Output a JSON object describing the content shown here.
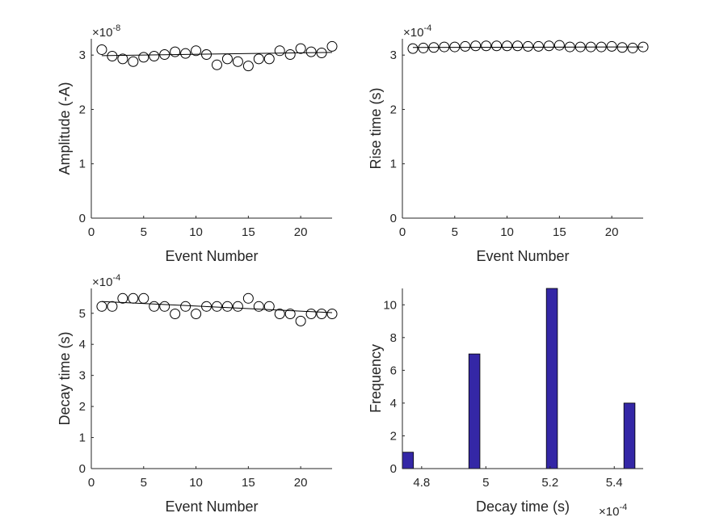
{
  "chart_data": [
    {
      "id": "amplitude",
      "type": "scatter",
      "xlabel": "Event Number",
      "ylabel": "Amplitude (-A)",
      "exponent_label": "×10",
      "exponent": "-8",
      "xlim": [
        0,
        23
      ],
      "ylim": [
        0,
        3.3
      ],
      "xticks": [
        0,
        5,
        10,
        15,
        20
      ],
      "xtick_labels": [
        "0",
        "5",
        "10",
        "15",
        "20"
      ],
      "yticks": [
        0,
        1,
        2,
        3
      ],
      "ytick_labels": [
        "0",
        "1",
        "2",
        "3"
      ],
      "x": [
        1,
        2,
        3,
        4,
        5,
        6,
        7,
        8,
        9,
        10,
        11,
        12,
        13,
        14,
        15,
        16,
        17,
        18,
        19,
        20,
        21,
        22,
        23
      ],
      "y": [
        3.1,
        2.98,
        2.93,
        2.88,
        2.96,
        2.98,
        3.01,
        3.06,
        3.03,
        3.08,
        3.01,
        2.82,
        2.93,
        2.88,
        2.8,
        2.93,
        2.93,
        3.08,
        3.01,
        3.12,
        3.06,
        3.04,
        3.16
      ],
      "fit": [
        [
          1,
          2.99
        ],
        [
          23,
          3.05
        ]
      ]
    },
    {
      "id": "rise",
      "type": "scatter",
      "xlabel": "Event Number",
      "ylabel": "Rise time (s)",
      "exponent_label": "×10",
      "exponent": "-4",
      "xlim": [
        0,
        23
      ],
      "ylim": [
        0,
        3.3
      ],
      "xticks": [
        0,
        5,
        10,
        15,
        20
      ],
      "xtick_labels": [
        "0",
        "5",
        "10",
        "15",
        "20"
      ],
      "yticks": [
        0,
        1,
        2,
        3
      ],
      "ytick_labels": [
        "0",
        "1",
        "2",
        "3"
      ],
      "x": [
        1,
        2,
        3,
        4,
        5,
        6,
        7,
        8,
        9,
        10,
        11,
        12,
        13,
        14,
        15,
        16,
        17,
        18,
        19,
        20,
        21,
        22,
        23
      ],
      "y": [
        3.12,
        3.13,
        3.14,
        3.15,
        3.15,
        3.16,
        3.17,
        3.17,
        3.17,
        3.17,
        3.17,
        3.16,
        3.16,
        3.17,
        3.18,
        3.15,
        3.15,
        3.15,
        3.15,
        3.16,
        3.14,
        3.13,
        3.15
      ],
      "fit": [
        [
          1,
          3.14
        ],
        [
          23,
          3.15
        ]
      ]
    },
    {
      "id": "decay",
      "type": "scatter",
      "xlabel": "Event Number",
      "ylabel": "Decay time (s)",
      "exponent_label": "×10",
      "exponent": "-4",
      "xlim": [
        0,
        23
      ],
      "ylim": [
        0,
        5.8
      ],
      "xticks": [
        0,
        5,
        10,
        15,
        20
      ],
      "xtick_labels": [
        "0",
        "5",
        "10",
        "15",
        "20"
      ],
      "yticks": [
        0,
        1,
        2,
        3,
        4,
        5
      ],
      "ytick_labels": [
        "0",
        "1",
        "2",
        "3",
        "4",
        "5"
      ],
      "x": [
        1,
        2,
        3,
        4,
        5,
        6,
        7,
        8,
        9,
        10,
        11,
        12,
        13,
        14,
        15,
        16,
        17,
        18,
        19,
        20,
        21,
        22,
        23
      ],
      "y": [
        5.22,
        5.22,
        5.48,
        5.48,
        5.48,
        5.22,
        5.22,
        4.98,
        5.22,
        4.98,
        5.22,
        5.22,
        5.22,
        5.22,
        5.48,
        5.22,
        5.22,
        4.98,
        4.98,
        4.75,
        4.98,
        4.98,
        4.98
      ],
      "fit": [
        [
          1,
          5.38
        ],
        [
          23,
          5.02
        ]
      ]
    },
    {
      "id": "histogram",
      "type": "bar",
      "xlabel": "Decay time (s)",
      "ylabel": "Frequency",
      "exponent_label": "×10",
      "exponent": "-4",
      "xlim": [
        4.74,
        5.49
      ],
      "ylim": [
        0,
        11
      ],
      "xticks": [
        4.8,
        5.0,
        5.2,
        5.4
      ],
      "xtick_labels": [
        "4.8",
        "5",
        "5.2",
        "5.4"
      ],
      "yticks": [
        0,
        2,
        4,
        6,
        8,
        10
      ],
      "ytick_labels": [
        "0",
        "2",
        "4",
        "6",
        "8",
        "10"
      ],
      "bar_color": "#3427a6",
      "bins": [
        {
          "left": 4.74,
          "right": 4.7745,
          "count": 1
        },
        {
          "left": 4.7745,
          "right": 4.809,
          "count": 0
        },
        {
          "left": 4.809,
          "right": 4.8435,
          "count": 0
        },
        {
          "left": 4.8435,
          "right": 4.878,
          "count": 0
        },
        {
          "left": 4.878,
          "right": 4.9125,
          "count": 0
        },
        {
          "left": 4.9125,
          "right": 4.947,
          "count": 0
        },
        {
          "left": 4.947,
          "right": 4.9815,
          "count": 7
        },
        {
          "left": 4.9815,
          "right": 5.016,
          "count": 0
        },
        {
          "left": 5.016,
          "right": 5.0505,
          "count": 0
        },
        {
          "left": 5.0505,
          "right": 5.085,
          "count": 0
        },
        {
          "left": 5.085,
          "right": 5.1195,
          "count": 0
        },
        {
          "left": 5.1195,
          "right": 5.154,
          "count": 0
        },
        {
          "left": 5.154,
          "right": 5.1885,
          "count": 0
        },
        {
          "left": 5.1885,
          "right": 5.223,
          "count": 11
        },
        {
          "left": 5.223,
          "right": 5.2575,
          "count": 0
        },
        {
          "left": 5.2575,
          "right": 5.292,
          "count": 0
        },
        {
          "left": 5.292,
          "right": 5.3265,
          "count": 0
        },
        {
          "left": 5.3265,
          "right": 5.361,
          "count": 0
        },
        {
          "left": 5.361,
          "right": 5.3955,
          "count": 0
        },
        {
          "left": 5.3955,
          "right": 5.43,
          "count": 0
        },
        {
          "left": 5.43,
          "right": 5.4645,
          "count": 4
        }
      ]
    }
  ]
}
